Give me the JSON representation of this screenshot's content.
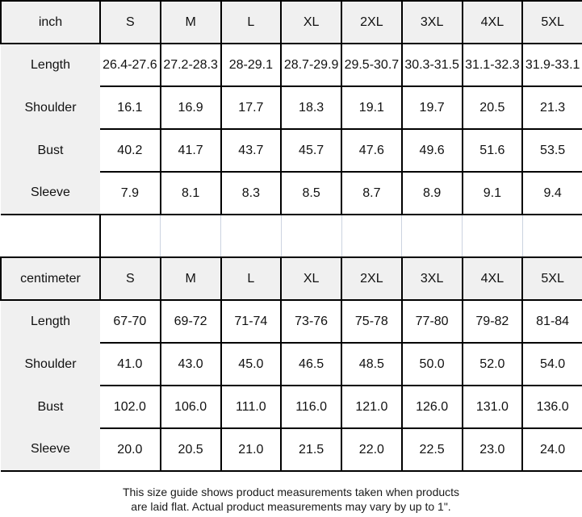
{
  "table": {
    "columns": [
      "S",
      "M",
      "L",
      "XL",
      "2XL",
      "3XL",
      "4XL",
      "5XL"
    ],
    "sections": [
      {
        "unit_label": "inch",
        "rows": [
          {
            "label": "Length",
            "values": [
              "26.4-27.6",
              "27.2-28.3",
              "28-29.1",
              "28.7-29.9",
              "29.5-30.7",
              "30.3-31.5",
              "31.1-32.3",
              "31.9-33.1"
            ]
          },
          {
            "label": "Shoulder",
            "values": [
              "16.1",
              "16.9",
              "17.7",
              "18.3",
              "19.1",
              "19.7",
              "20.5",
              "21.3"
            ]
          },
          {
            "label": "Bust",
            "values": [
              "40.2",
              "41.7",
              "43.7",
              "45.7",
              "47.6",
              "49.6",
              "51.6",
              "53.5"
            ]
          },
          {
            "label": "Sleeve",
            "values": [
              "7.9",
              "8.1",
              "8.3",
              "8.5",
              "8.7",
              "8.9",
              "9.1",
              "9.4"
            ]
          }
        ]
      },
      {
        "unit_label": "centimeter",
        "rows": [
          {
            "label": "Length",
            "values": [
              "67-70",
              "69-72",
              "71-74",
              "73-76",
              "75-78",
              "77-80",
              "79-82",
              "81-84"
            ]
          },
          {
            "label": "Shoulder",
            "values": [
              "41.0",
              "43.0",
              "45.0",
              "46.5",
              "48.5",
              "50.0",
              "52.0",
              "54.0"
            ]
          },
          {
            "label": "Bust",
            "values": [
              "102.0",
              "106.0",
              "111.0",
              "116.0",
              "121.0",
              "126.0",
              "131.0",
              "136.0"
            ]
          },
          {
            "label": "Sleeve",
            "values": [
              "20.0",
              "20.5",
              "21.0",
              "21.5",
              "22.0",
              "22.5",
              "23.0",
              "24.0"
            ]
          }
        ]
      }
    ]
  },
  "note": {
    "line1": "This size guide shows product measurements taken when products",
    "line2": "are laid flat. Actual product measurements may vary by up to 1\"."
  },
  "colors": {
    "header_bg": "#f0f0f0",
    "border": "#000000",
    "gridline": "#ccd3e0"
  }
}
